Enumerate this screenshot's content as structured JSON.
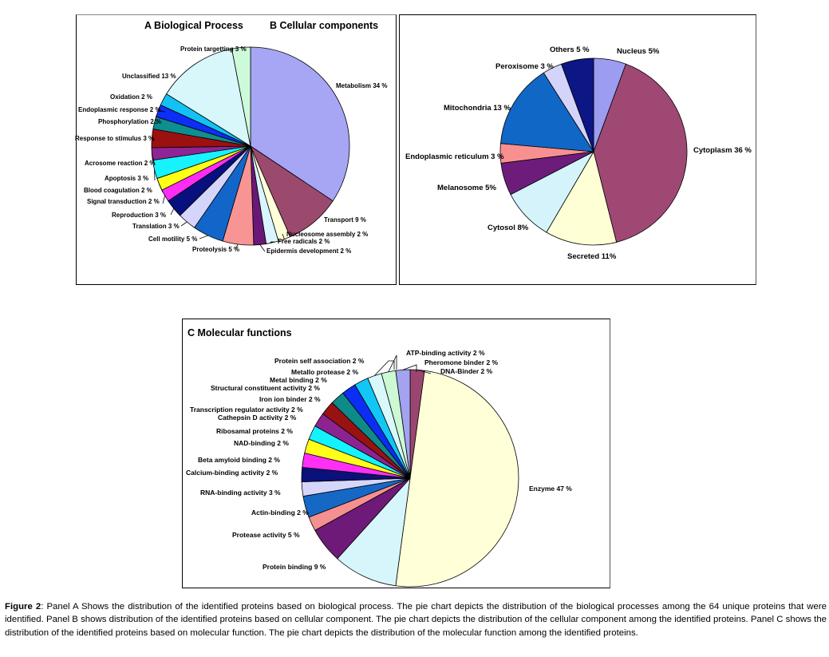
{
  "caption": {
    "label": "Figure 2",
    "text": ": Panel A Shows the distribution of the identified proteins based on biological process. The pie chart depicts the distribution of the biological processes among the 64 unique proteins that were identified. Panel B shows distribution of the identified proteins based on cellular component. The pie chart depicts the distribution of the cellular component among the identified proteins. Panel C shows the distribution of the identified proteins based on molecular function. The pie chart depicts the distribution of the molecular function among the identified proteins."
  },
  "chart_data": [
    {
      "type": "pie",
      "title": "A   Biological Process",
      "slices": [
        {
          "name": "Metabolism",
          "label": "Metabolism 34 %",
          "value": 34,
          "color": "#a6a6f4"
        },
        {
          "name": "Transport",
          "label": "Transport 9 %",
          "value": 9,
          "color": "#9b4a6e"
        },
        {
          "name": "Nucleosome assembly",
          "label": "Nucleosome assembly 2 %",
          "value": 2,
          "color": "#ffffd9"
        },
        {
          "name": "Free radicals",
          "label": "Free radicals 2 %",
          "value": 2,
          "color": "#d9f5ff"
        },
        {
          "name": "Epidermis development",
          "label": "Epidermis development 2 %",
          "value": 2,
          "color": "#6a1878"
        },
        {
          "name": "Proteolysis",
          "label": "Proteolysis 5 %",
          "value": 5,
          "color": "#f99494"
        },
        {
          "name": "Cell motility",
          "label": "Cell motility 5 %",
          "value": 5,
          "color": "#1266c9"
        },
        {
          "name": "Translation",
          "label": "Translation 3 %",
          "value": 3,
          "color": "#d5d5fb"
        },
        {
          "name": "Reproduction",
          "label": "Reproduction 3 %",
          "value": 3,
          "color": "#07107e"
        },
        {
          "name": "Signal transduction",
          "label": "Signal transduction 2 %",
          "value": 2,
          "color": "#ff2cf5"
        },
        {
          "name": "Blood coagulation",
          "label": "Blood coagulation 2 %",
          "value": 2,
          "color": "#ffff16"
        },
        {
          "name": "Apoptosis",
          "label": "Apoptosis 3 %",
          "value": 3,
          "color": "#17f2ff"
        },
        {
          "name": "Acrosome reaction",
          "label": "Acrosome reaction 2 %",
          "value": 2,
          "color": "#8f2495"
        },
        {
          "name": "Response to stimulus",
          "label": "Response to stimulus 3 %",
          "value": 3,
          "color": "#9c1010"
        },
        {
          "name": "Phosphorylation",
          "label": "Phosphorylation 2 %",
          "value": 2,
          "color": "#0f8e8e"
        },
        {
          "name": "Endoplasmic response",
          "label": "Endoplasmic response 2 %",
          "value": 2,
          "color": "#0d2ef6"
        },
        {
          "name": "Oxidation",
          "label": "Oxidation 2 %",
          "value": 2,
          "color": "#13c2f3"
        },
        {
          "name": "Unclassified",
          "label": "Unclassified 13 %",
          "value": 13,
          "color": "#d8f7fb"
        },
        {
          "name": "Protein targetting",
          "label": "Protein targetting 3 %",
          "value": 3,
          "color": "#cdfbd9"
        }
      ]
    },
    {
      "type": "pie",
      "title": "B   Cellular components",
      "slices": [
        {
          "name": "Nucleus",
          "label": "Nucleus 5%",
          "value": 5,
          "color": "#9c9cf0"
        },
        {
          "name": "Cytoplasm",
          "label": "Cytoplasm 36 %",
          "value": 36,
          "color": "#a04874"
        },
        {
          "name": "Secreted",
          "label": "Secreted 11%",
          "value": 11,
          "color": "#ffffd6"
        },
        {
          "name": "Cytosol",
          "label": "Cytosol 8%",
          "value": 8,
          "color": "#d4f3fb"
        },
        {
          "name": "Melanosome",
          "label": "Melanosome 5%",
          "value": 5,
          "color": "#6e1c7c"
        },
        {
          "name": "Endoplasmic reticulum",
          "label": "Endoplasmic reticulum 3 %",
          "value": 3,
          "color": "#f99090"
        },
        {
          "name": "Mitochondria",
          "label": "Mitochondria 13 %",
          "value": 13,
          "color": "#1167c6"
        },
        {
          "name": "Peroxisome",
          "label": "Peroxisome 3 %",
          "value": 3,
          "color": "#d4d4fa"
        },
        {
          "name": "Others",
          "label": "Others 5 %",
          "value": 5,
          "color": "#0c1685"
        }
      ]
    },
    {
      "type": "pie",
      "title": "C   Molecular functions",
      "slices": [
        {
          "name": "DNA-Binder",
          "label": "DNA-Binder 2 %",
          "value": 2,
          "color": "#9b4670"
        },
        {
          "name": "Enzyme",
          "label": "Enzyme 47 %",
          "value": 47,
          "color": "#ffffd8"
        },
        {
          "name": "Protein binding",
          "label": "Protein binding 9 %",
          "value": 9,
          "color": "#d6f6fb"
        },
        {
          "name": "Protease activity",
          "label": "Protease activity 5 %",
          "value": 5,
          "color": "#6e1a78"
        },
        {
          "name": "Actin-binding",
          "label": "Actin-binding 2 %",
          "value": 2,
          "color": "#f59090"
        },
        {
          "name": "RNA-binding activity",
          "label": "RNA-binding activity 3 %",
          "value": 3,
          "color": "#1569c5"
        },
        {
          "name": "Calcium-binding activity",
          "label": "Calcium-binding activity 2 %",
          "value": 2,
          "color": "#d6d6fb"
        },
        {
          "name": "Beta amyloid binding",
          "label": "Beta amyloid binding 2 %",
          "value": 2,
          "color": "#0a117a"
        },
        {
          "name": "NAD-binding",
          "label": "NAD-binding 2 %",
          "value": 2,
          "color": "#ff2ff5"
        },
        {
          "name": "Ribosamal proteins",
          "label": "Ribosamal proteins 2 %",
          "value": 2,
          "color": "#ffff1a"
        },
        {
          "name": "Cathepsin D activity",
          "label": "Cathepsin D activity 2 %",
          "value": 2,
          "color": "#14f2ff"
        },
        {
          "name": "Transcription regulator activity",
          "label": "Transcription regulator activity 2 %",
          "value": 2,
          "color": "#8d2391"
        },
        {
          "name": "Iron ion binder",
          "label": "Iron ion binder 2 %",
          "value": 2,
          "color": "#991212"
        },
        {
          "name": "Structural constituent activity",
          "label": "Structural constituent activity 2 %",
          "value": 2,
          "color": "#0e8a8a"
        },
        {
          "name": "Metal binding",
          "label": "Metal binding 2 %",
          "value": 2,
          "color": "#0c2ef2"
        },
        {
          "name": "Metallo protease",
          "label": "Metallo protease 2 %",
          "value": 2,
          "color": "#12c6f6"
        },
        {
          "name": "Protein self association",
          "label": "Protein self association 2 %",
          "value": 2,
          "color": "#d8f8fb"
        },
        {
          "name": "ATP-binding activity",
          "label": "ATP-binding activity 2 %",
          "value": 2,
          "color": "#ccf9d4"
        },
        {
          "name": "Pheromone binder",
          "label": "Pheromone binder 2 %",
          "value": 2,
          "color": "#a3a3f2"
        }
      ]
    }
  ]
}
